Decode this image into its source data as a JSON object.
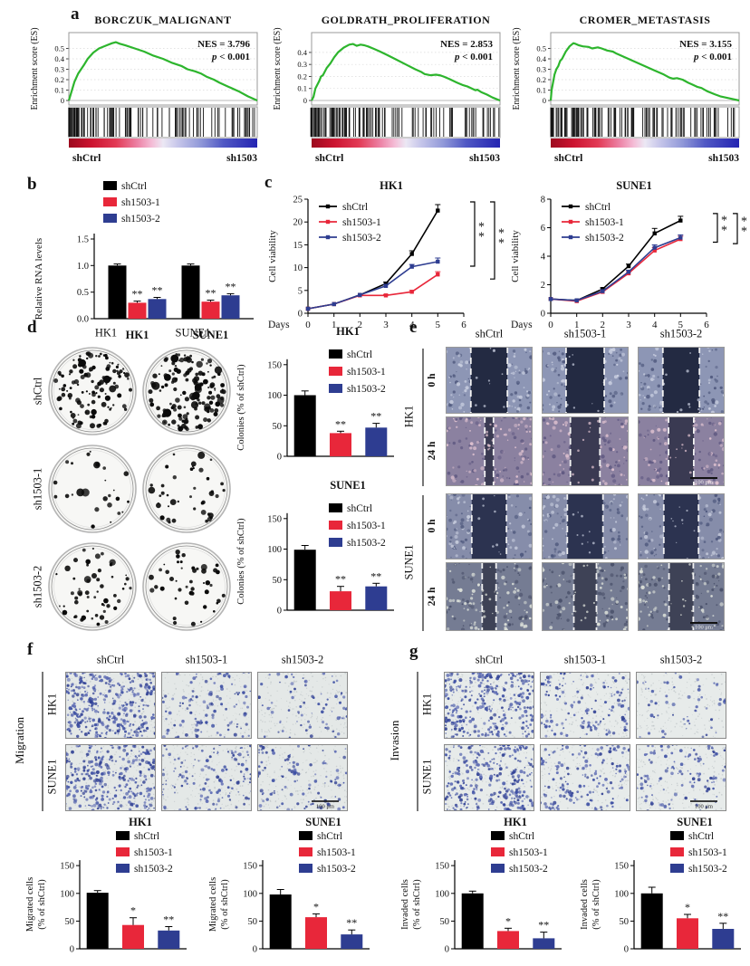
{
  "colors": {
    "black": "#000000",
    "red": "#e8273a",
    "blue": "#2e3d91",
    "green": "#2db52d"
  },
  "groups": [
    "shCtrl",
    "sh1503-1",
    "sh1503-2"
  ],
  "panels": {
    "a": {
      "label": "a"
    },
    "b": {
      "label": "b"
    },
    "c": {
      "label": "c"
    },
    "d": {
      "label": "d",
      "cols": [
        "HK1",
        "SUNE1"
      ],
      "rows": [
        "shCtrl",
        "sh1503-1",
        "sh1503-2"
      ],
      "density": [
        [
          115,
          140
        ],
        [
          26,
          42
        ],
        [
          58,
          46
        ]
      ]
    },
    "e": {
      "label": "e",
      "cols": [
        "shCtrl",
        "sh1503-1",
        "sh1503-2"
      ],
      "cell_lines": [
        "HK1",
        "SUNE1"
      ],
      "times": [
        "0 h",
        "24 h"
      ],
      "scale": "100 μm",
      "rows": [
        {
          "line": "HK1",
          "time": "0 h",
          "gaps": [
            0.42,
            0.44,
            0.42
          ],
          "base": "#8d96b5",
          "dark": "#4f587d",
          "light": "#ccd1e2",
          "gap_color": "#232a42",
          "scale": false
        },
        {
          "line": "HK1",
          "time": "24 h",
          "gaps": [
            0.1,
            0.34,
            0.29
          ],
          "base": "#8b81a0",
          "dark": "#5d5680",
          "light": "#e2c4d2",
          "gap_color": "#3a3a52",
          "scale": true
        },
        {
          "line": "SUNE1",
          "time": "0 h",
          "gaps": [
            0.4,
            0.41,
            0.4
          ],
          "base": "#868daa",
          "dark": "#4d577c",
          "light": "#c8cddd",
          "gap_color": "#2c3350",
          "scale": false
        },
        {
          "line": "SUNE1",
          "time": "24 h",
          "gaps": [
            0.16,
            0.26,
            0.28
          ],
          "base": "#757c93",
          "dark": "#474e68",
          "light": "#e3e7de",
          "gap_color": "#3e4256",
          "scale": true
        }
      ]
    },
    "f": {
      "label": "f",
      "side": "Migration",
      "cols": [
        "shCtrl",
        "sh1503-1",
        "sh1503-2"
      ],
      "rows": [
        "HK1",
        "SUNE1"
      ],
      "scale": "100 μm",
      "bg": "#e4e8e7",
      "density": [
        [
          380,
          115,
          75
        ],
        [
          330,
          145,
          110
        ]
      ]
    },
    "g": {
      "label": "g",
      "side": "Invasion",
      "cols": [
        "shCtrl",
        "sh1503-1",
        "sh1503-2"
      ],
      "rows": [
        "HK1",
        "SUNE1"
      ],
      "scale": "100 μm",
      "bg": "#e7ebea",
      "density": [
        [
          320,
          140,
          58
        ],
        [
          300,
          170,
          120
        ]
      ]
    }
  },
  "chart_data": [
    {
      "id": "gsea1",
      "type": "line",
      "variant": "gsea",
      "title": "BORCZUK_MALIGNANT",
      "nes": "NES = 3.796",
      "p": "< 0.001",
      "ylabel": "Enrichment score (ES)",
      "ymax": 0.6,
      "yticks": [
        0,
        0.1,
        0.2,
        0.3,
        0.4,
        0.5
      ],
      "ytick_labels": [
        "0",
        "0.1",
        "0.2",
        "0.3",
        "0.4",
        "0.5"
      ],
      "xleft": "shCtrl",
      "xright": "sh1503",
      "curve": [
        [
          0,
          0
        ],
        [
          0.01,
          0.06
        ],
        [
          0.03,
          0.18
        ],
        [
          0.05,
          0.26
        ],
        [
          0.08,
          0.34
        ],
        [
          0.1,
          0.4
        ],
        [
          0.13,
          0.46
        ],
        [
          0.16,
          0.5
        ],
        [
          0.2,
          0.53
        ],
        [
          0.23,
          0.55
        ],
        [
          0.25,
          0.56
        ],
        [
          0.27,
          0.545
        ],
        [
          0.3,
          0.53
        ],
        [
          0.35,
          0.5
        ],
        [
          0.4,
          0.47
        ],
        [
          0.45,
          0.43
        ],
        [
          0.5,
          0.4
        ],
        [
          0.55,
          0.36
        ],
        [
          0.6,
          0.33
        ],
        [
          0.63,
          0.3
        ],
        [
          0.67,
          0.28
        ],
        [
          0.7,
          0.26
        ],
        [
          0.73,
          0.23
        ],
        [
          0.77,
          0.2
        ],
        [
          0.8,
          0.17
        ],
        [
          0.85,
          0.13
        ],
        [
          0.9,
          0.09
        ],
        [
          0.95,
          0.04
        ],
        [
          1,
          0
        ]
      ]
    },
    {
      "id": "gsea2",
      "type": "line",
      "variant": "gsea",
      "title": "GOLDRATH_PROLIFERATION",
      "nes": "NES = 2.853",
      "p": "< 0.001",
      "ylabel": "Enrichment score (ES)",
      "ymax": 0.52,
      "yticks": [
        0,
        0.1,
        0.2,
        0.3,
        0.4
      ],
      "ytick_labels": [
        "0",
        "0.1",
        "0.2",
        "0.3",
        "0.4"
      ],
      "xleft": "shCtrl",
      "xright": "sh1503",
      "curve": [
        [
          0,
          0
        ],
        [
          0.01,
          0.03
        ],
        [
          0.02,
          0.1
        ],
        [
          0.04,
          0.16
        ],
        [
          0.05,
          0.2
        ],
        [
          0.06,
          0.21
        ],
        [
          0.08,
          0.27
        ],
        [
          0.1,
          0.31
        ],
        [
          0.12,
          0.36
        ],
        [
          0.14,
          0.4
        ],
        [
          0.17,
          0.44
        ],
        [
          0.2,
          0.465
        ],
        [
          0.22,
          0.47
        ],
        [
          0.24,
          0.455
        ],
        [
          0.26,
          0.465
        ],
        [
          0.28,
          0.46
        ],
        [
          0.3,
          0.45
        ],
        [
          0.33,
          0.43
        ],
        [
          0.36,
          0.41
        ],
        [
          0.4,
          0.38
        ],
        [
          0.45,
          0.34
        ],
        [
          0.5,
          0.3
        ],
        [
          0.55,
          0.26
        ],
        [
          0.58,
          0.24
        ],
        [
          0.6,
          0.22
        ],
        [
          0.63,
          0.21
        ],
        [
          0.66,
          0.215
        ],
        [
          0.68,
          0.21
        ],
        [
          0.7,
          0.2
        ],
        [
          0.73,
          0.18
        ],
        [
          0.77,
          0.15
        ],
        [
          0.8,
          0.13
        ],
        [
          0.83,
          0.115
        ],
        [
          0.85,
          0.1
        ],
        [
          0.87,
          0.085
        ],
        [
          0.88,
          0.09
        ],
        [
          0.9,
          0.07
        ],
        [
          0.93,
          0.05
        ],
        [
          0.96,
          0.025
        ],
        [
          1,
          0
        ]
      ]
    },
    {
      "id": "gsea3",
      "type": "line",
      "variant": "gsea",
      "title": "CROMER_METASTASIS",
      "nes": "NES = 3.155",
      "p": "< 0.001",
      "ylabel": "Enrichment score (ES)",
      "ymax": 0.6,
      "yticks": [
        0,
        0.1,
        0.2,
        0.3,
        0.4,
        0.5
      ],
      "ytick_labels": [
        "0",
        "0.1",
        "0.2",
        "0.3",
        "0.4",
        "0.5"
      ],
      "xleft": "shCtrl",
      "xright": "sh1503",
      "curve": [
        [
          0,
          0
        ],
        [
          0.005,
          0.1
        ],
        [
          0.02,
          0.25
        ],
        [
          0.03,
          0.3
        ],
        [
          0.04,
          0.33
        ],
        [
          0.05,
          0.38
        ],
        [
          0.06,
          0.4
        ],
        [
          0.08,
          0.47
        ],
        [
          0.1,
          0.52
        ],
        [
          0.12,
          0.55
        ],
        [
          0.13,
          0.545
        ],
        [
          0.15,
          0.53
        ],
        [
          0.17,
          0.52
        ],
        [
          0.2,
          0.515
        ],
        [
          0.22,
          0.5
        ],
        [
          0.25,
          0.51
        ],
        [
          0.27,
          0.5
        ],
        [
          0.3,
          0.48
        ],
        [
          0.33,
          0.47
        ],
        [
          0.35,
          0.45
        ],
        [
          0.4,
          0.41
        ],
        [
          0.45,
          0.37
        ],
        [
          0.5,
          0.33
        ],
        [
          0.55,
          0.29
        ],
        [
          0.6,
          0.25
        ],
        [
          0.63,
          0.22
        ],
        [
          0.65,
          0.21
        ],
        [
          0.67,
          0.215
        ],
        [
          0.7,
          0.2
        ],
        [
          0.73,
          0.17
        ],
        [
          0.75,
          0.155
        ],
        [
          0.78,
          0.13
        ],
        [
          0.8,
          0.12
        ],
        [
          0.83,
          0.09
        ],
        [
          0.87,
          0.06
        ],
        [
          0.9,
          0.04
        ],
        [
          0.95,
          0.02
        ],
        [
          1,
          0
        ]
      ]
    },
    {
      "id": "b",
      "type": "bar",
      "grouped": true,
      "ylabel": "Relative RNA levels",
      "categories": [
        "HK1",
        "SUNE1"
      ],
      "ylim": [
        0,
        1.5
      ],
      "yticks": [
        0,
        0.5,
        1,
        1.5
      ],
      "ytick_labels": [
        "0.0",
        "0.5",
        "1.0",
        "1.5"
      ],
      "series": [
        {
          "name": "shCtrl",
          "values": [
            1,
            1
          ],
          "err": [
            0.03,
            0.03
          ],
          "sig": [
            "",
            ""
          ]
        },
        {
          "name": "sh1503-1",
          "values": [
            0.3,
            0.32
          ],
          "err": [
            0.03,
            0.03
          ],
          "sig": [
            "**",
            "**"
          ]
        },
        {
          "name": "sh1503-2",
          "values": [
            0.37,
            0.44
          ],
          "err": [
            0.03,
            0.03
          ],
          "sig": [
            "**",
            "**"
          ]
        }
      ]
    },
    {
      "id": "cHK1",
      "type": "line",
      "title": "HK1",
      "ylabel": "Cell viability",
      "xlabel": "Days",
      "xlim": [
        0,
        6
      ],
      "xticks": [
        0,
        1,
        2,
        3,
        4,
        5,
        6
      ],
      "ylim": [
        0,
        25
      ],
      "yticks": [
        0,
        5,
        10,
        15,
        20,
        25
      ],
      "ytick_labels": [
        "0",
        "5",
        "10",
        "15",
        "20",
        "25"
      ],
      "x": [
        0,
        1,
        2,
        3,
        4,
        5
      ],
      "series": [
        {
          "name": "shCtrl",
          "values": [
            1,
            2,
            4,
            6.5,
            13,
            22.5
          ],
          "err": [
            0,
            0,
            0,
            0.3,
            0.7,
            1.3
          ]
        },
        {
          "name": "sh1503-1",
          "values": [
            1,
            2,
            3.9,
            3.9,
            4.7,
            8.5
          ],
          "err": [
            0,
            0,
            0,
            0.2,
            0.3,
            0.6
          ]
        },
        {
          "name": "sh1503-2",
          "values": [
            1,
            2,
            4,
            6,
            10.2,
            11.3
          ],
          "err": [
            0,
            0,
            0,
            0.3,
            0.5,
            0.8
          ]
        }
      ],
      "brackets": [
        {
          "a": 0,
          "b": 2,
          "stars": "**"
        },
        {
          "a": 0,
          "b": 1,
          "stars": "**"
        }
      ]
    },
    {
      "id": "cSUNE1",
      "type": "line",
      "title": "SUNE1",
      "ylabel": "Cell viability",
      "xlabel": "Days",
      "xlim": [
        0,
        6
      ],
      "xticks": [
        0,
        1,
        2,
        3,
        4,
        5,
        6
      ],
      "ylim": [
        0,
        8
      ],
      "yticks": [
        0,
        2,
        4,
        6,
        8
      ],
      "ytick_labels": [
        "0",
        "2",
        "4",
        "6",
        "8"
      ],
      "x": [
        0,
        1,
        2,
        3,
        4,
        5
      ],
      "series": [
        {
          "name": "shCtrl",
          "values": [
            1,
            0.9,
            1.7,
            3.3,
            5.6,
            6.5
          ],
          "err": [
            0,
            0.05,
            0.08,
            0.15,
            0.35,
            0.3
          ]
        },
        {
          "name": "sh1503-1",
          "values": [
            1,
            0.85,
            1.5,
            2.8,
            4.4,
            5.2
          ],
          "err": [
            0,
            0.05,
            0.08,
            0.12,
            0.2,
            0.2
          ]
        },
        {
          "name": "sh1503-2",
          "values": [
            1,
            0.9,
            1.55,
            2.9,
            4.6,
            5.3
          ],
          "err": [
            0,
            0.05,
            0.08,
            0.12,
            0.2,
            0.2
          ]
        }
      ],
      "brackets": [
        {
          "a": 0,
          "b": 2,
          "stars": "**"
        },
        {
          "a": 0,
          "b": 1,
          "stars": "**"
        }
      ]
    },
    {
      "id": "dHK1",
      "type": "bar",
      "title": "HK1",
      "ylabel": "Colonies (% of shCtrl)",
      "ylim": [
        0,
        160
      ],
      "yticks": [
        0,
        50,
        100,
        150
      ],
      "ytick_labels": [
        "0",
        "50",
        "100",
        "150"
      ],
      "values": [
        100,
        38,
        47
      ],
      "err": [
        7,
        3,
        7
      ],
      "sig": [
        "",
        "**",
        "**"
      ]
    },
    {
      "id": "dSUNE1",
      "type": "bar",
      "title": "SUNE1",
      "ylabel": "Colonies (% of shCtrl)",
      "ylim": [
        0,
        160
      ],
      "yticks": [
        0,
        50,
        100,
        150
      ],
      "ytick_labels": [
        "0",
        "50",
        "100",
        "150"
      ],
      "values": [
        99,
        31,
        39
      ],
      "err": [
        7,
        8,
        5
      ],
      "sig": [
        "",
        "**",
        "**"
      ]
    },
    {
      "id": "fHK1",
      "type": "bar",
      "title": "HK1",
      "ylabel2": [
        "Migrated cells",
        "(% of shCtrl)"
      ],
      "ylim": [
        0,
        160
      ],
      "yticks": [
        0,
        50,
        100,
        150
      ],
      "ytick_labels": [
        "0",
        "50",
        "100",
        "150"
      ],
      "values": [
        101,
        43,
        33
      ],
      "err": [
        4,
        13,
        7
      ],
      "sig": [
        "",
        "*",
        "**"
      ]
    },
    {
      "id": "fSUNE1",
      "type": "bar",
      "title": "SUNE1",
      "ylabel2": [
        "Migrated cells",
        "(% of shCtrl)"
      ],
      "ylim": [
        0,
        160
      ],
      "yticks": [
        0,
        50,
        100,
        150
      ],
      "ytick_labels": [
        "0",
        "50",
        "100",
        "150"
      ],
      "values": [
        98,
        57,
        26
      ],
      "err": [
        9,
        6,
        8
      ],
      "sig": [
        "",
        "*",
        "**"
      ]
    },
    {
      "id": "gHK1",
      "type": "bar",
      "title": "HK1",
      "ylabel2": [
        "Invaded cells",
        "(% of shCtrl)"
      ],
      "ylim": [
        0,
        160
      ],
      "yticks": [
        0,
        50,
        100,
        150
      ],
      "ytick_labels": [
        "0",
        "50",
        "100",
        "150"
      ],
      "values": [
        100,
        32,
        19
      ],
      "err": [
        4,
        5,
        11
      ],
      "sig": [
        "",
        "*",
        "**"
      ]
    },
    {
      "id": "gSUNE1",
      "type": "bar",
      "title": "SUNE1",
      "ylabel2": [
        "Invaded cells",
        "(% of shCtrl)"
      ],
      "ylim": [
        0,
        160
      ],
      "yticks": [
        0,
        50,
        100,
        150
      ],
      "ytick_labels": [
        "0",
        "50",
        "100",
        "150"
      ],
      "values": [
        100,
        55,
        36
      ],
      "err": [
        11,
        7,
        10
      ],
      "sig": [
        "",
        "*",
        "**"
      ]
    }
  ]
}
